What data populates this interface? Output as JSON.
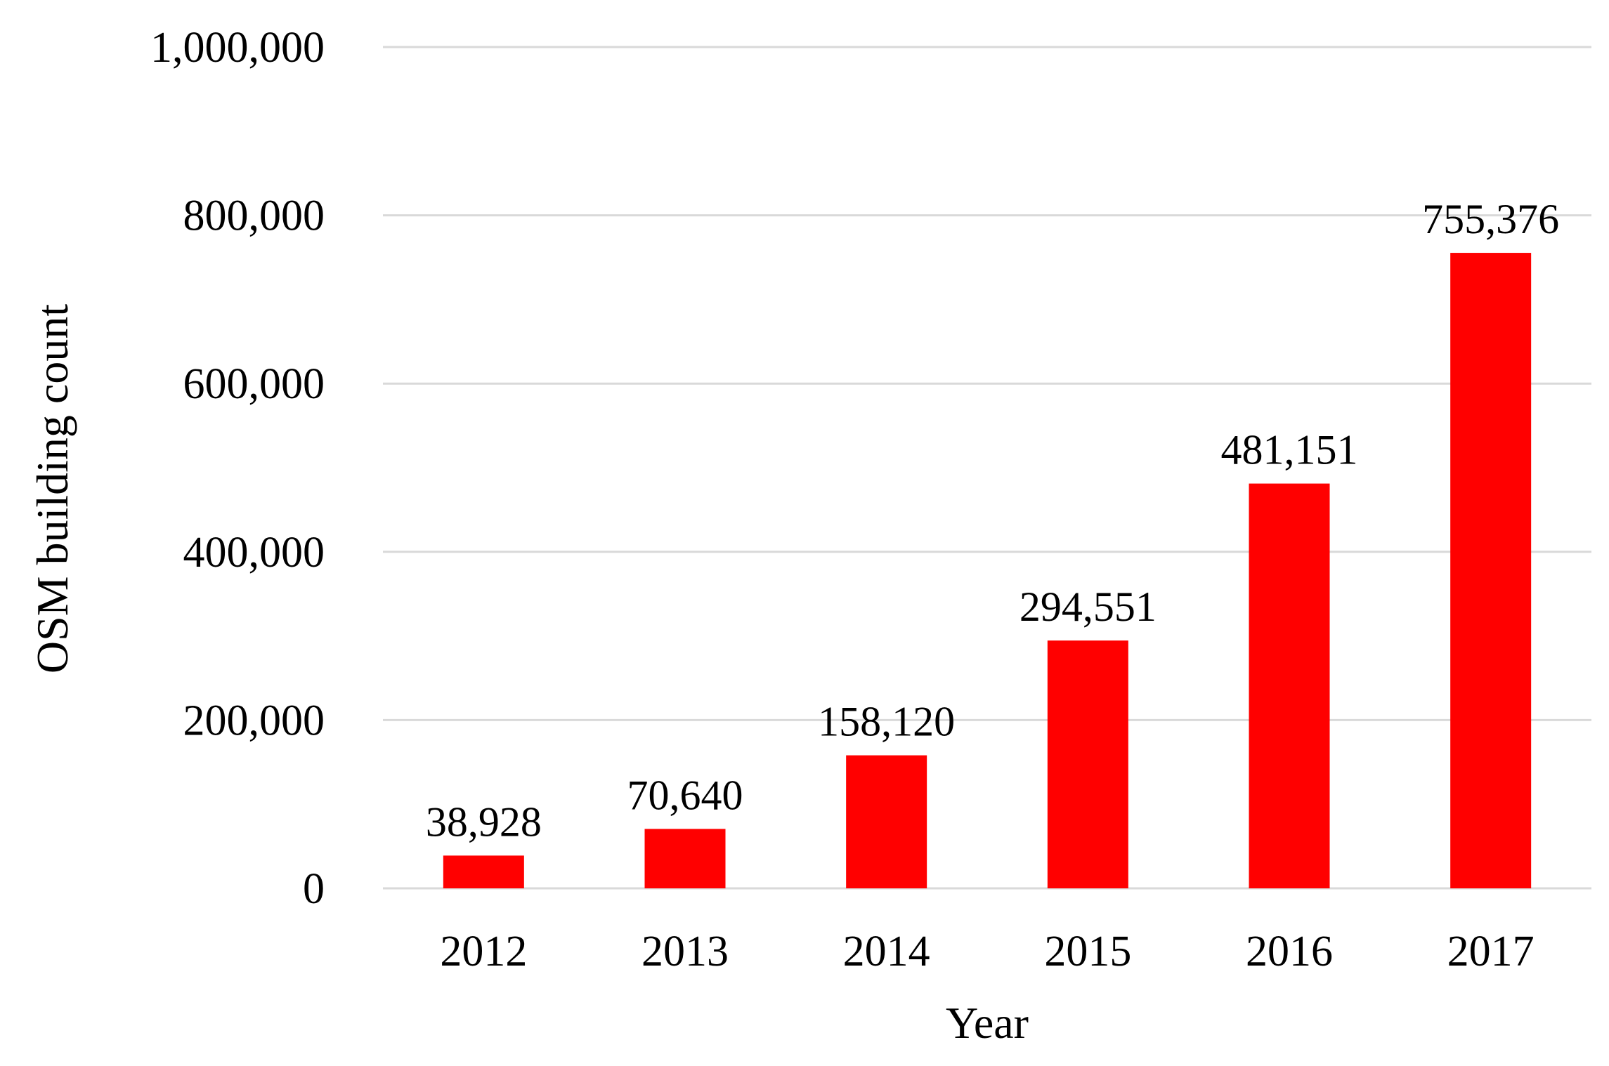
{
  "chart_data": {
    "type": "bar",
    "title": "",
    "xlabel": "Year",
    "ylabel": "OSM building count",
    "categories": [
      "2012",
      "2013",
      "2014",
      "2015",
      "2016",
      "2017"
    ],
    "values": [
      38928,
      70640,
      158120,
      294551,
      481151,
      755376
    ],
    "data_labels": [
      "38,928",
      "70,640",
      "158,120",
      "294,551",
      "481,151",
      "755,376"
    ],
    "ylim": [
      0,
      1000000
    ],
    "yticks": [
      0,
      200000,
      400000,
      600000,
      800000,
      1000000
    ],
    "ytick_labels": [
      "0",
      "200,000",
      "400,000",
      "600,000",
      "800,000",
      "1,000,000"
    ],
    "grid": "horizontal",
    "legend": "none",
    "colors": {
      "bar": "#ff0000",
      "grid": "#d9d9d9",
      "text": "#000000"
    }
  }
}
